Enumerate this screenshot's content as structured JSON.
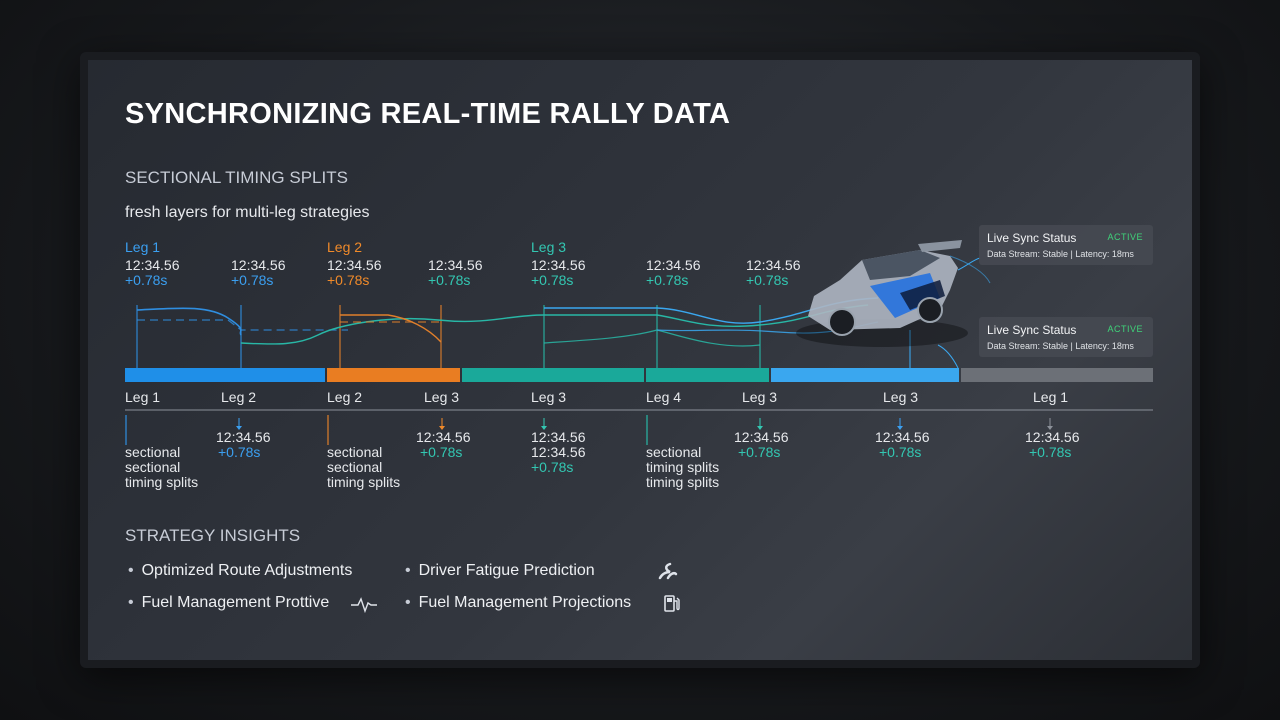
{
  "title": "SYNCHRONIZING REAL-TIME RALLY DATA",
  "subtitle": "SECTIONAL TIMING SPLITS",
  "caption": "fresh layers for multi-leg strategies",
  "top_markers": [
    {
      "leg": "Leg 1",
      "time": "12:34.56",
      "delta": "+0.78s"
    },
    {
      "leg": "",
      "time": "12:34.56",
      "delta": "+0.78s"
    },
    {
      "leg": "Leg 2",
      "time": "12:34.56",
      "delta": "+0.78s"
    },
    {
      "leg": "",
      "time": "12:34.56",
      "delta": "+0.78s"
    },
    {
      "leg": "Leg 3",
      "time": "12:34.56",
      "delta": "+0.78s"
    },
    {
      "leg": "",
      "time": "12:34.56",
      "delta": "+0.78s"
    },
    {
      "leg": "",
      "time": "12:34.56",
      "delta": "+0.78s"
    }
  ],
  "bottom_legs": [
    "Leg 1",
    "Leg 2",
    "Leg 2",
    "Leg 3",
    "Leg 3",
    "Leg 4",
    "Leg 3",
    "Leg 3",
    "Leg 1"
  ],
  "bottom_splits": [
    {
      "line1": "sectional",
      "line2": "sectional",
      "line3": "timing splits"
    },
    {
      "time": "12:34.56",
      "delta": "+0.78s"
    },
    {
      "line1": "sectional",
      "line2": "sectional",
      "line3": "timing splits"
    },
    {
      "time": "12:34.56",
      "delta": "+0.78s"
    },
    {
      "time": "12:34.56",
      "time2": "12:34.56",
      "delta": "+0.78s"
    },
    {
      "line1": "sectional",
      "line2": "timing splits",
      "line3": "timing splits"
    },
    {
      "time": "12:34.56",
      "delta": "+0.78s"
    },
    {
      "time": "12:34.56",
      "delta": "+0.78s"
    },
    {
      "time": "12:34.56",
      "delta": "+0.78s"
    }
  ],
  "status_panels": [
    {
      "label": "Live Sync Status",
      "badge": "ACTIVE",
      "detail": "Data Stream: Stable | Latency: 18ms"
    },
    {
      "label": "Live Sync Status",
      "badge": "ACTIVE",
      "detail": "Data Stream: Stable | Latency: 18ms"
    }
  ],
  "insights_title": "STRATEGY INSIGHTS",
  "insights": [
    {
      "label": "Optimized Route Adjustments",
      "icon": ""
    },
    {
      "label": "Driver Fatigue Prediction",
      "icon": "route-icon"
    },
    {
      "label": "Fuel Management Prottive",
      "icon": "pulse-icon"
    },
    {
      "label": "Fuel Management Projections",
      "icon": "fuel-pump-icon"
    }
  ],
  "colors": {
    "blue": "#1f8fe8",
    "orange": "#e97d22",
    "teal": "#1aa99a",
    "light_blue": "#3aa7ef",
    "gray": "#6c7077",
    "active": "#3fd37a"
  }
}
